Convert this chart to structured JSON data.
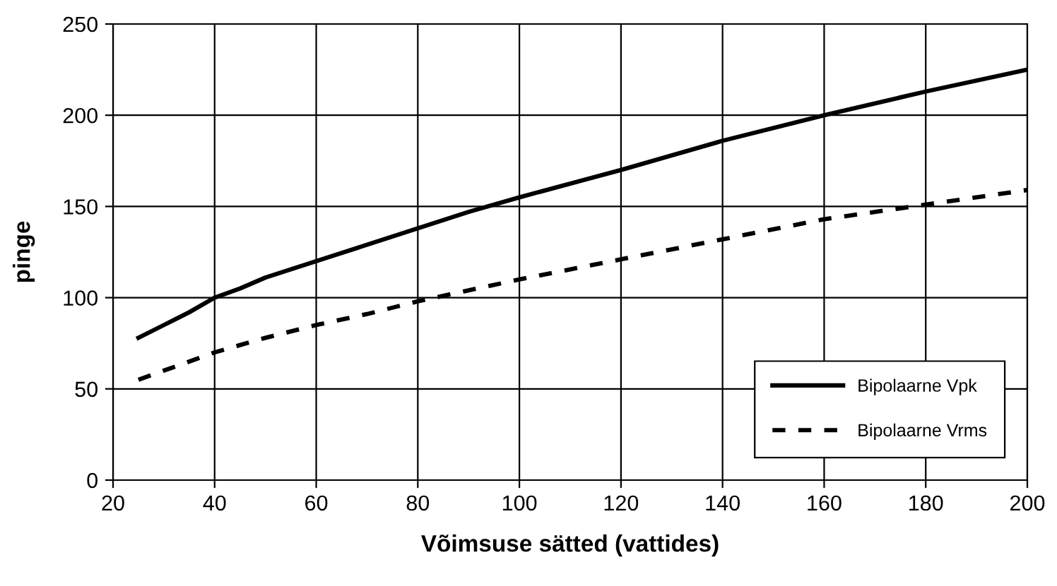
{
  "chart_data": {
    "type": "line",
    "xlabel": "Võimsuse sätted (vattides)",
    "ylabel": "pinge",
    "x": [
      25,
      30,
      35,
      40,
      45,
      50,
      60,
      70,
      80,
      90,
      100,
      120,
      140,
      160,
      180,
      200
    ],
    "series": [
      {
        "name": "Bipolaarne Vpk",
        "color": "#000000",
        "line_style": "solid",
        "values": [
          78,
          85,
          92,
          100,
          105,
          111,
          120,
          129,
          138,
          147,
          155,
          170,
          186,
          200,
          213,
          225
        ]
      },
      {
        "name": "Bipolaarne Vrms",
        "color": "#000000",
        "line_style": "dashed",
        "values": [
          55,
          60,
          65,
          70,
          74,
          78,
          85,
          91,
          98,
          104,
          110,
          121,
          132,
          143,
          151,
          159
        ]
      }
    ],
    "xlim": [
      20,
      200
    ],
    "xticks": [
      20,
      40,
      60,
      80,
      100,
      120,
      140,
      160,
      180,
      200
    ],
    "ylim": [
      0,
      250
    ],
    "yticks": [
      0,
      50,
      100,
      150,
      200,
      250
    ],
    "grid": true,
    "legend": "bottom right",
    "marker": "none"
  }
}
